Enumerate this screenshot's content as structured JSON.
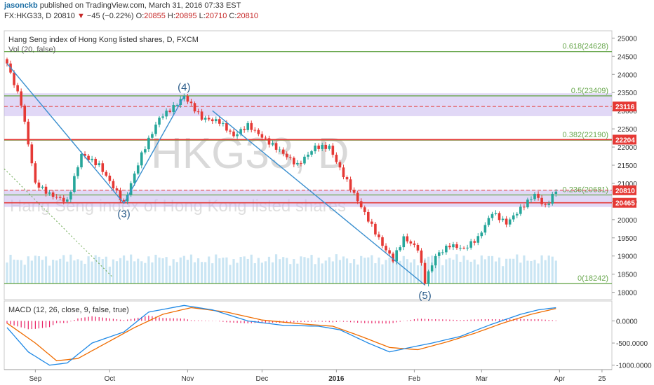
{
  "header": {
    "user": "jasonckb",
    "published": "published on TradingView.com, March 31, 2016 07:33 EST",
    "symbol": "FX:HKG33, D",
    "last": "20810",
    "change": "−45 (−0.22%)",
    "o_label": "O:",
    "o": "20855",
    "h_label": "H:",
    "h": "20895",
    "l_label": "L:",
    "l": "20710",
    "c_label": "C:",
    "c": "20810"
  },
  "colors": {
    "bull": "#26a69a",
    "bear": "#e53935",
    "wave": "#3a8fcf",
    "fib": "#6aa84f",
    "zone": "#c9b8ee",
    "volume": "#9fd0ea",
    "macd": "#1e88e5",
    "signal": "#ef6c00",
    "hist": "#e91e63"
  },
  "chart_data": [
    {
      "type": "candlestick",
      "title": "Hang Seng index of Hong Kong listed shares, D, FXCM",
      "volume_label": "Vol (20, false)",
      "watermark": "HKG33, D",
      "watermark_sub": "Hang Seng index of Hong Kong listed shares",
      "ylim": [
        17800,
        25200
      ],
      "y_ticks": [
        18000,
        18500,
        19000,
        19500,
        20000,
        20500,
        21000,
        21500,
        22000,
        22500,
        23000,
        23500,
        24000,
        24500,
        25000
      ],
      "x_ticks": [
        {
          "label": "Sep",
          "t": 8
        },
        {
          "label": "Oct",
          "t": 29
        },
        {
          "label": "Nov",
          "t": 51
        },
        {
          "label": "Dec",
          "t": 72
        },
        {
          "label": "2016",
          "t": 93
        },
        {
          "label": "Feb",
          "t": 115
        },
        {
          "label": "Mar",
          "t": 134
        },
        {
          "label": "Apr",
          "t": 156
        },
        {
          "label": "25",
          "t": 168
        }
      ],
      "fib_levels": [
        {
          "label": "0.618(24628)",
          "value": 24628
        },
        {
          "label": "0.5(23409)",
          "value": 23409
        },
        {
          "label": "0.382(22190)",
          "value": 22190
        },
        {
          "label": "0.236(20681)",
          "value": 20681
        },
        {
          "label": "0(18242)",
          "value": 18242
        }
      ],
      "price_badges": [
        {
          "label": "23116",
          "value": 23116,
          "color": "#e53935"
        },
        {
          "label": "22204",
          "value": 22204,
          "color": "#e53935"
        },
        {
          "label": "20810",
          "value": 20810,
          "color": "#e53935"
        },
        {
          "label": "20465",
          "value": 20465,
          "color": "#e53935"
        }
      ],
      "zones": [
        [
          22850,
          23480
        ],
        [
          20350,
          20820
        ]
      ],
      "wave_labels": [
        {
          "label": "(3)",
          "t": 33,
          "value": 20450,
          "pos": "below"
        },
        {
          "label": "(4)",
          "t": 50,
          "value": 23400,
          "pos": "above"
        },
        {
          "label": "(5)",
          "t": 118,
          "value": 18200,
          "pos": "below"
        }
      ],
      "wave_lines": [
        [
          [
            0,
            24300
          ],
          [
            33,
            20450
          ]
        ],
        [
          [
            33,
            20450
          ],
          [
            50,
            23400
          ]
        ],
        [
          [
            58,
            23000
          ],
          [
            118,
            18200
          ]
        ]
      ],
      "anchors": [
        {
          "t": 0,
          "v": 24300
        },
        {
          "t": 4,
          "v": 23200
        },
        {
          "t": 8,
          "v": 21000
        },
        {
          "t": 12,
          "v": 20700
        },
        {
          "t": 17,
          "v": 20500
        },
        {
          "t": 21,
          "v": 21800
        },
        {
          "t": 26,
          "v": 21500
        },
        {
          "t": 33,
          "v": 20450
        },
        {
          "t": 38,
          "v": 21800
        },
        {
          "t": 43,
          "v": 22800
        },
        {
          "t": 47,
          "v": 23100
        },
        {
          "t": 50,
          "v": 23400
        },
        {
          "t": 55,
          "v": 22800
        },
        {
          "t": 60,
          "v": 22700
        },
        {
          "t": 64,
          "v": 22300
        },
        {
          "t": 68,
          "v": 22600
        },
        {
          "t": 73,
          "v": 22200
        },
        {
          "t": 77,
          "v": 21900
        },
        {
          "t": 82,
          "v": 21500
        },
        {
          "t": 87,
          "v": 22000
        },
        {
          "t": 91,
          "v": 22000
        },
        {
          "t": 94,
          "v": 21400
        },
        {
          "t": 98,
          "v": 20700
        },
        {
          "t": 102,
          "v": 20000
        },
        {
          "t": 106,
          "v": 19300
        },
        {
          "t": 109,
          "v": 18900
        },
        {
          "t": 112,
          "v": 19500
        },
        {
          "t": 116,
          "v": 19200
        },
        {
          "t": 118,
          "v": 18300
        },
        {
          "t": 121,
          "v": 19000
        },
        {
          "t": 125,
          "v": 19300
        },
        {
          "t": 129,
          "v": 19200
        },
        {
          "t": 133,
          "v": 19500
        },
        {
          "t": 137,
          "v": 20200
        },
        {
          "t": 141,
          "v": 19900
        },
        {
          "t": 145,
          "v": 20300
        },
        {
          "t": 149,
          "v": 20700
        },
        {
          "t": 152,
          "v": 20350
        },
        {
          "t": 155,
          "v": 20810
        }
      ]
    },
    {
      "type": "line",
      "title": "MACD (12, 26, close, 9, false, true)",
      "ylim": [
        -1100,
        450
      ],
      "y_ticks": [
        {
          "label": "0.0000",
          "value": 0
        },
        {
          "label": "-500.0000",
          "value": -500
        },
        {
          "label": "-1000.0000",
          "value": -1000
        }
      ],
      "macd_anchors": [
        {
          "t": 0,
          "v": -150
        },
        {
          "t": 6,
          "v": -700
        },
        {
          "t": 12,
          "v": -1000
        },
        {
          "t": 17,
          "v": -950
        },
        {
          "t": 24,
          "v": -500
        },
        {
          "t": 33,
          "v": -250
        },
        {
          "t": 40,
          "v": 200
        },
        {
          "t": 50,
          "v": 350
        },
        {
          "t": 58,
          "v": 250
        },
        {
          "t": 68,
          "v": 0
        },
        {
          "t": 78,
          "v": -100
        },
        {
          "t": 88,
          "v": -120
        },
        {
          "t": 94,
          "v": -200
        },
        {
          "t": 102,
          "v": -500
        },
        {
          "t": 108,
          "v": -700
        },
        {
          "t": 115,
          "v": -580
        },
        {
          "t": 120,
          "v": -500
        },
        {
          "t": 128,
          "v": -350
        },
        {
          "t": 136,
          "v": -100
        },
        {
          "t": 145,
          "v": 150
        },
        {
          "t": 150,
          "v": 250
        },
        {
          "t": 155,
          "v": 300
        }
      ],
      "signal_anchors": [
        {
          "t": 0,
          "v": -50
        },
        {
          "t": 8,
          "v": -500
        },
        {
          "t": 14,
          "v": -900
        },
        {
          "t": 20,
          "v": -850
        },
        {
          "t": 28,
          "v": -500
        },
        {
          "t": 36,
          "v": -150
        },
        {
          "t": 44,
          "v": 150
        },
        {
          "t": 52,
          "v": 300
        },
        {
          "t": 62,
          "v": 200
        },
        {
          "t": 72,
          "v": 20
        },
        {
          "t": 82,
          "v": -60
        },
        {
          "t": 92,
          "v": -120
        },
        {
          "t": 100,
          "v": -350
        },
        {
          "t": 108,
          "v": -600
        },
        {
          "t": 116,
          "v": -650
        },
        {
          "t": 124,
          "v": -480
        },
        {
          "t": 132,
          "v": -280
        },
        {
          "t": 140,
          "v": -50
        },
        {
          "t": 148,
          "v": 150
        },
        {
          "t": 155,
          "v": 280
        }
      ]
    }
  ]
}
